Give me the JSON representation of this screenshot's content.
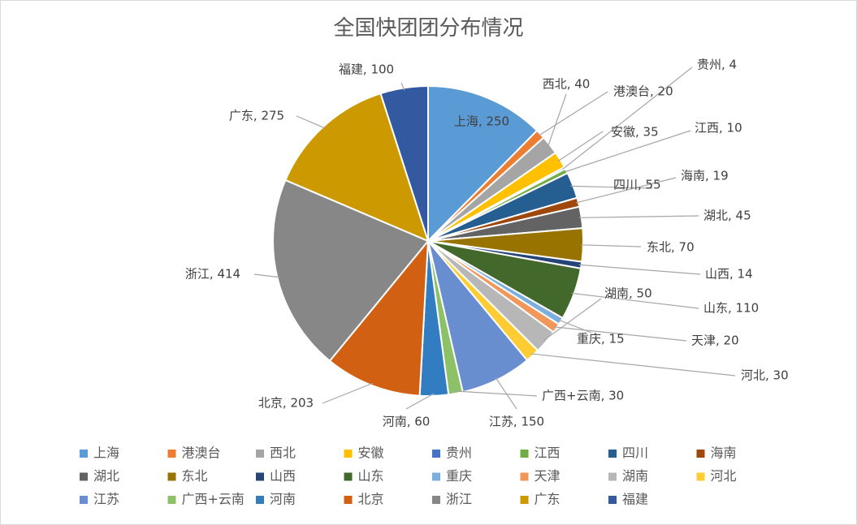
{
  "chart_data": {
    "type": "pie",
    "title": "全国快团团分布情况",
    "legend_position": "bottom",
    "slices": [
      {
        "name": "上海",
        "value": 250,
        "color": "#5b9bd5"
      },
      {
        "name": "港澳台",
        "value": 20,
        "color": "#ed7d31"
      },
      {
        "name": "西北",
        "value": 40,
        "color": "#a5a5a5"
      },
      {
        "name": "安徽",
        "value": 35,
        "color": "#ffc000"
      },
      {
        "name": "贵州",
        "value": 4,
        "color": "#4472c4"
      },
      {
        "name": "江西",
        "value": 10,
        "color": "#70ad47"
      },
      {
        "name": "四川",
        "value": 55,
        "color": "#255e91"
      },
      {
        "name": "海南",
        "value": 19,
        "color": "#9e480e"
      },
      {
        "name": "湖北",
        "value": 45,
        "color": "#636363"
      },
      {
        "name": "东北",
        "value": 70,
        "color": "#997300"
      },
      {
        "name": "山西",
        "value": 14,
        "color": "#264478"
      },
      {
        "name": "山东",
        "value": 110,
        "color": "#43682b"
      },
      {
        "name": "重庆",
        "value": 15,
        "color": "#7cafdd"
      },
      {
        "name": "天津",
        "value": 20,
        "color": "#f1975a"
      },
      {
        "name": "湖南",
        "value": 50,
        "color": "#b7b7b7"
      },
      {
        "name": "河北",
        "value": 30,
        "color": "#ffcd33"
      },
      {
        "name": "江苏",
        "value": 150,
        "color": "#698ed0"
      },
      {
        "name": "广西+云南",
        "value": 30,
        "color": "#8cc168"
      },
      {
        "name": "河南",
        "value": 60,
        "color": "#327dc2"
      },
      {
        "name": "北京",
        "value": 203,
        "color": "#d26012"
      },
      {
        "name": "浙江",
        "value": 414,
        "color": "#878787"
      },
      {
        "name": "广东",
        "value": 275,
        "color": "#cc9a00"
      },
      {
        "name": "福建",
        "value": 100,
        "color": "#335aa1"
      }
    ]
  }
}
